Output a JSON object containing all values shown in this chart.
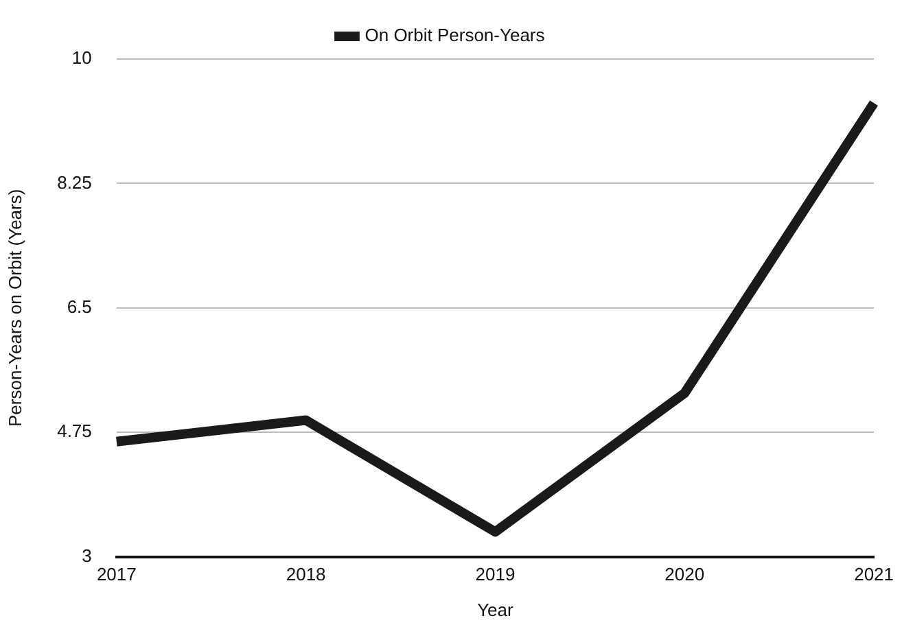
{
  "chart_data": {
    "type": "line",
    "xlabel": "Year",
    "ylabel": "Person-Years on Orbit (Years)",
    "categories": [
      "2017",
      "2018",
      "2019",
      "2020",
      "2021"
    ],
    "series": [
      {
        "name": "On Orbit Person-Years",
        "color": "#1a1a1a",
        "values": [
          4.62,
          4.92,
          3.35,
          5.3,
          9.38
        ]
      }
    ],
    "ylim": [
      3,
      10
    ],
    "yticks": [
      3,
      4.75,
      6.5,
      8.25,
      10
    ],
    "grid": "y",
    "legend": "top",
    "marker": "none",
    "line_style": "solid"
  }
}
